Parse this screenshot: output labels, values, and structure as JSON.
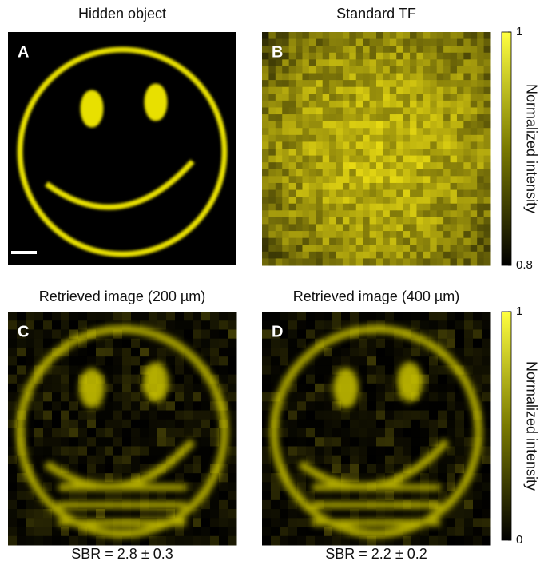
{
  "panels": [
    {
      "title": "Hidden object",
      "letter": "A"
    },
    {
      "title": "Standard TF",
      "letter": "B"
    },
    {
      "title": "Retrieved image (200 µm)",
      "letter": "C",
      "caption": "SBR = 2.8 ± 0.3"
    },
    {
      "title": "Retrieved image (400 µm)",
      "letter": "D",
      "caption": "SBR = 2.2 ± 0.2"
    }
  ],
  "colorbars": [
    {
      "label": "Normalized intensity",
      "ticks": [
        0.8,
        1
      ]
    },
    {
      "label": "Normalized intensity",
      "ticks": [
        0,
        1
      ]
    }
  ]
}
